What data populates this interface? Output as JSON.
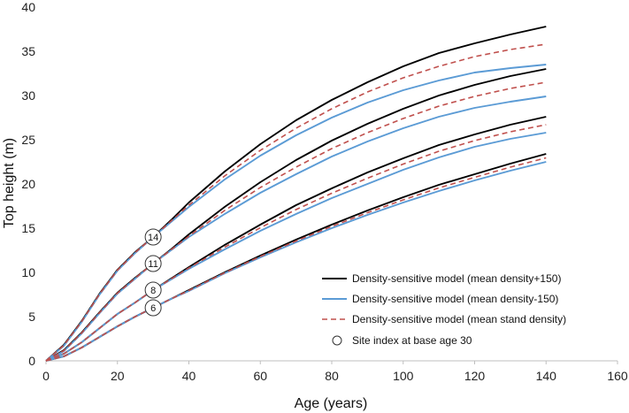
{
  "chart_data": {
    "type": "line",
    "xlabel": "Age (years)",
    "ylabel": "Top height (m)",
    "xlim": [
      0,
      160
    ],
    "ylim": [
      0,
      40
    ],
    "xticks": [
      0,
      20,
      40,
      60,
      80,
      100,
      120,
      140,
      160
    ],
    "yticks": [
      0,
      5,
      10,
      15,
      20,
      25,
      30,
      35,
      40
    ],
    "grid": false,
    "legend_position": "bottom-right",
    "series": [
      {
        "name": "Density-sensitive model (mean density+150)",
        "color": "#000000",
        "dash": "solid",
        "curves": [
          {
            "x": [
              0,
              5,
              10,
              15,
              20,
              25,
              30,
              35,
              40,
              50,
              60,
              70,
              80,
              90,
              100,
              110,
              120,
              130,
              140
            ],
            "y": [
              0,
              1.8,
              4.5,
              7.6,
              10.3,
              12.3,
              14.0,
              15.9,
              17.9,
              21.4,
              24.5,
              27.2,
              29.5,
              31.5,
              33.3,
              34.8,
              35.9,
              36.9,
              37.8
            ]
          },
          {
            "x": [
              0,
              5,
              10,
              15,
              20,
              25,
              30,
              35,
              40,
              50,
              60,
              70,
              80,
              90,
              100,
              110,
              120,
              130,
              140
            ],
            "y": [
              0,
              1.2,
              3.2,
              5.5,
              7.7,
              9.4,
              11.0,
              12.6,
              14.3,
              17.4,
              20.2,
              22.7,
              24.9,
              26.8,
              28.5,
              30.0,
              31.2,
              32.2,
              33.0
            ]
          },
          {
            "x": [
              0,
              5,
              10,
              15,
              20,
              25,
              30,
              35,
              40,
              50,
              60,
              70,
              80,
              90,
              100,
              110,
              120,
              130,
              140
            ],
            "y": [
              0,
              0.8,
              2.1,
              3.7,
              5.3,
              6.6,
              8.0,
              9.3,
              10.6,
              13.1,
              15.4,
              17.6,
              19.5,
              21.3,
              22.9,
              24.4,
              25.6,
              26.7,
              27.6
            ]
          },
          {
            "x": [
              0,
              5,
              10,
              15,
              20,
              25,
              30,
              35,
              40,
              50,
              60,
              70,
              80,
              90,
              100,
              110,
              120,
              130,
              140
            ],
            "y": [
              0,
              0.5,
              1.5,
              2.7,
              3.9,
              5.0,
              6.0,
              7.0,
              8.0,
              10.0,
              11.9,
              13.7,
              15.4,
              17.0,
              18.5,
              19.9,
              21.1,
              22.3,
              23.4
            ]
          }
        ]
      },
      {
        "name": "Density-sensitive model (mean density-150)",
        "color": "#5b9bd5",
        "dash": "solid",
        "curves": [
          {
            "x": [
              0,
              5,
              10,
              15,
              20,
              25,
              30,
              35,
              40,
              50,
              60,
              70,
              80,
              90,
              100,
              110,
              120,
              130,
              140
            ],
            "y": [
              0,
              1.7,
              4.4,
              7.5,
              10.2,
              12.2,
              14.0,
              15.7,
              17.4,
              20.5,
              23.2,
              25.5,
              27.5,
              29.2,
              30.6,
              31.7,
              32.6,
              33.1,
              33.5
            ]
          },
          {
            "x": [
              0,
              5,
              10,
              15,
              20,
              25,
              30,
              35,
              40,
              50,
              60,
              70,
              80,
              90,
              100,
              110,
              120,
              130,
              140
            ],
            "y": [
              0,
              1.1,
              3.1,
              5.4,
              7.6,
              9.3,
              11.0,
              12.5,
              14.0,
              16.6,
              19.0,
              21.1,
              23.1,
              24.8,
              26.3,
              27.6,
              28.6,
              29.3,
              29.9
            ]
          },
          {
            "x": [
              0,
              5,
              10,
              15,
              20,
              25,
              30,
              35,
              40,
              50,
              60,
              70,
              80,
              90,
              100,
              110,
              120,
              130,
              140
            ],
            "y": [
              0,
              0.8,
              2.1,
              3.7,
              5.3,
              6.6,
              8.0,
              9.2,
              10.4,
              12.6,
              14.7,
              16.6,
              18.4,
              20.0,
              21.6,
              23.0,
              24.2,
              25.1,
              25.8
            ]
          },
          {
            "x": [
              0,
              5,
              10,
              15,
              20,
              25,
              30,
              35,
              40,
              50,
              60,
              70,
              80,
              90,
              100,
              110,
              120,
              130,
              140
            ],
            "y": [
              0,
              0.5,
              1.5,
              2.7,
              3.9,
              5.0,
              6.0,
              7.0,
              7.9,
              9.9,
              11.7,
              13.4,
              15.0,
              16.5,
              17.9,
              19.2,
              20.4,
              21.5,
              22.5
            ]
          }
        ]
      },
      {
        "name": "Density-sensitive model (mean stand density)",
        "color": "#c0504d",
        "dash": "dashed",
        "curves": [
          {
            "x": [
              0,
              5,
              10,
              15,
              20,
              25,
              30,
              35,
              40,
              50,
              60,
              70,
              80,
              90,
              100,
              110,
              120,
              130,
              140
            ],
            "y": [
              0,
              1.75,
              4.45,
              7.55,
              10.25,
              12.25,
              14.0,
              15.8,
              17.6,
              20.9,
              23.8,
              26.3,
              28.5,
              30.4,
              32.0,
              33.3,
              34.4,
              35.2,
              35.8
            ]
          },
          {
            "x": [
              0,
              5,
              10,
              15,
              20,
              25,
              30,
              35,
              40,
              50,
              60,
              70,
              80,
              90,
              100,
              110,
              120,
              130,
              140
            ],
            "y": [
              0,
              1.15,
              3.15,
              5.45,
              7.65,
              9.35,
              11.0,
              12.55,
              14.1,
              17.0,
              19.6,
              21.9,
              24.0,
              25.8,
              27.4,
              28.8,
              29.9,
              30.8,
              31.5
            ]
          },
          {
            "x": [
              0,
              5,
              10,
              15,
              20,
              25,
              30,
              35,
              40,
              50,
              60,
              70,
              80,
              90,
              100,
              110,
              120,
              130,
              140
            ],
            "y": [
              0,
              0.8,
              2.1,
              3.7,
              5.3,
              6.6,
              8.0,
              9.25,
              10.5,
              12.85,
              15.05,
              17.1,
              18.95,
              20.65,
              22.25,
              23.7,
              24.9,
              25.9,
              26.7
            ]
          },
          {
            "x": [
              0,
              5,
              10,
              15,
              20,
              25,
              30,
              35,
              40,
              50,
              60,
              70,
              80,
              90,
              100,
              110,
              120,
              130,
              140
            ],
            "y": [
              0,
              0.5,
              1.5,
              2.7,
              3.9,
              5.0,
              6.0,
              7.0,
              7.95,
              9.95,
              11.8,
              13.55,
              15.2,
              16.75,
              18.2,
              19.55,
              20.75,
              21.9,
              22.95
            ]
          }
        ]
      }
    ],
    "site_index": {
      "legend_label": "Site index at base age 30",
      "points": [
        {
          "x": 30,
          "y": 14,
          "label": "14"
        },
        {
          "x": 30,
          "y": 11,
          "label": "11"
        },
        {
          "x": 30,
          "y": 8,
          "label": "8"
        },
        {
          "x": 30,
          "y": 6,
          "label": "6"
        }
      ]
    }
  }
}
